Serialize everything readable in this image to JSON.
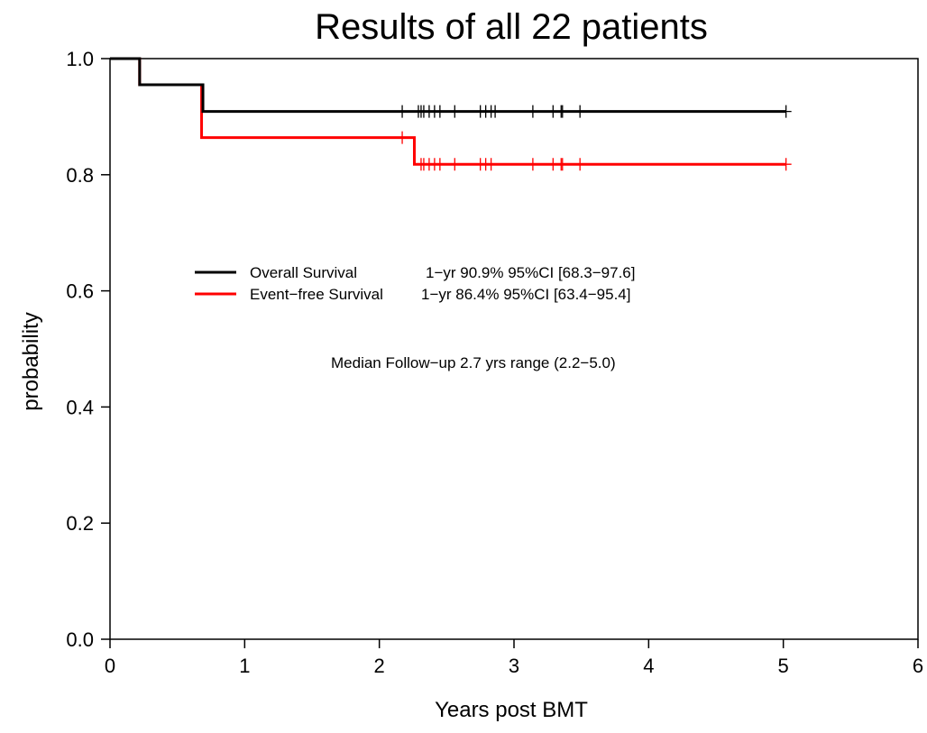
{
  "chart_data": {
    "type": "line",
    "title": "Results of all 22 patients",
    "xlabel": "Years post BMT",
    "ylabel": "probability",
    "xlim": [
      0,
      6
    ],
    "ylim": [
      0,
      1
    ],
    "xticks": [
      "0",
      "1",
      "2",
      "3",
      "4",
      "5",
      "6"
    ],
    "yticks": [
      "0.0",
      "0.2",
      "0.4",
      "0.6",
      "0.8",
      "1.0"
    ],
    "grid": false,
    "legend_position": "center-left",
    "series": [
      {
        "name": "Overall Survival",
        "legend_label": "Overall Survival",
        "legend_detail": "1−yr 90.9% 95%CI [68.3−97.6]",
        "color": "#000000",
        "steps": [
          [
            0,
            1.0
          ],
          [
            0.22,
            0.955
          ],
          [
            0.69,
            0.909
          ],
          [
            5.02,
            0.909
          ]
        ],
        "censor_times": [
          2.17,
          2.29,
          2.31,
          2.33,
          2.37,
          2.41,
          2.45,
          2.56,
          2.75,
          2.79,
          2.83,
          2.86,
          3.14,
          3.29,
          3.35,
          3.36,
          3.49,
          5.02
        ]
      },
      {
        "name": "Event-free Survival",
        "legend_label": "Event−free Survival",
        "legend_detail": "1−yr 86.4% 95%CI [63.4−95.4]",
        "color": "#ff0000",
        "steps": [
          [
            0,
            1.0
          ],
          [
            0.22,
            0.955
          ],
          [
            0.68,
            0.864
          ],
          [
            2.26,
            0.818
          ],
          [
            5.02,
            0.818
          ]
        ],
        "censor_times": [
          2.17,
          2.31,
          2.33,
          2.37,
          2.41,
          2.45,
          2.56,
          2.75,
          2.79,
          2.83,
          3.14,
          3.29,
          3.35,
          3.36,
          3.49,
          5.02
        ]
      }
    ],
    "annotation": "Median Follow−up 2.7 yrs range (2.2−5.0)"
  }
}
